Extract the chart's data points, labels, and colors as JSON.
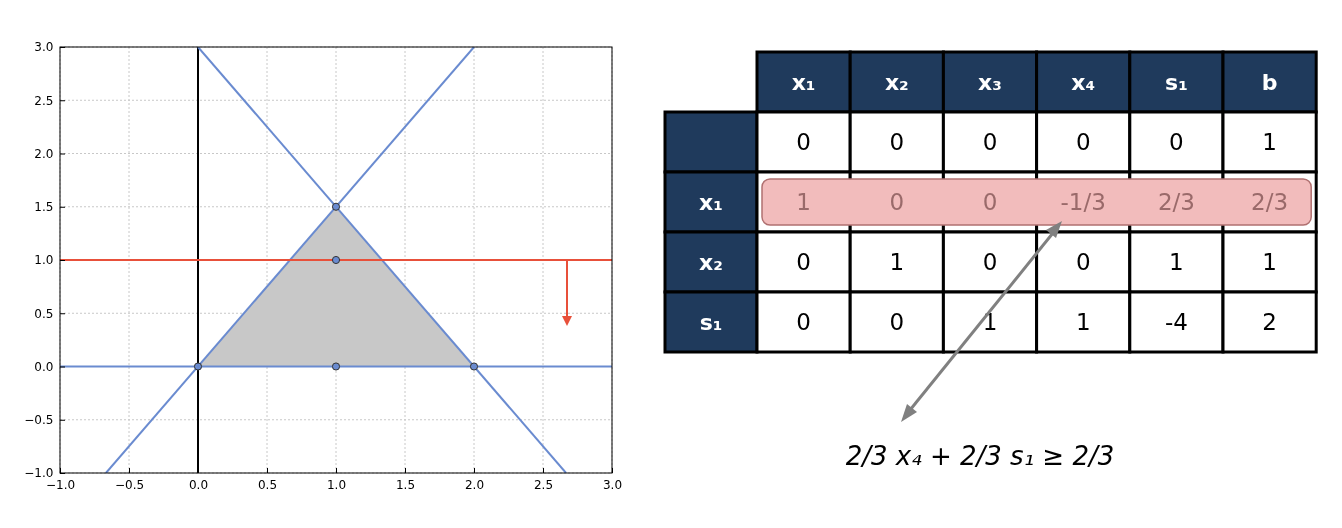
{
  "chart_data": [
    {
      "type": "line",
      "xlim": [
        -1,
        3
      ],
      "ylim": [
        -1,
        3
      ],
      "xticks": [
        {
          "value": -1,
          "label": "−1.0"
        },
        {
          "value": -0.5,
          "label": "−0.5"
        },
        {
          "value": 0,
          "label": "0.0"
        },
        {
          "value": 0.5,
          "label": "0.5"
        },
        {
          "value": 1,
          "label": "1.0"
        },
        {
          "value": 1.5,
          "label": "1.5"
        },
        {
          "value": 2,
          "label": "2.0"
        },
        {
          "value": 2.5,
          "label": "2.5"
        },
        {
          "value": 3,
          "label": "3.0"
        }
      ],
      "yticks": [
        {
          "value": -1,
          "label": "−1.0"
        },
        {
          "value": -0.5,
          "label": "−0.5"
        },
        {
          "value": 0,
          "label": "0.0"
        },
        {
          "value": 0.5,
          "label": "0.5"
        },
        {
          "value": 1,
          "label": "1.0"
        },
        {
          "value": 1.5,
          "label": "1.5"
        },
        {
          "value": 2,
          "label": "2.0"
        },
        {
          "value": 2.5,
          "label": "2.5"
        },
        {
          "value": 3,
          "label": "3.0"
        }
      ],
      "grid": true,
      "line_style": "solid",
      "series": [
        {
          "type": "area",
          "color": "#c8c8c8",
          "x": [
            0,
            1,
            2
          ],
          "values": [
            0,
            1.5,
            0
          ]
        },
        {
          "type": "line",
          "color": "#000000",
          "x": [
            0,
            0
          ],
          "values": [
            -1,
            3
          ]
        },
        {
          "type": "line",
          "color": "#6a8bd0",
          "x": [
            -1,
            3
          ],
          "values": [
            0,
            0
          ]
        },
        {
          "type": "line",
          "color": "#6a8bd0",
          "x": [
            -0.667,
            2
          ],
          "values": [
            -1,
            3
          ]
        },
        {
          "type": "line",
          "color": "#6a8bd0",
          "x": [
            0,
            2.667
          ],
          "values": [
            3,
            -1
          ]
        },
        {
          "type": "scatter",
          "color": "#6a8bd0",
          "marker": "circle",
          "x": [
            0,
            1,
            1,
            1,
            2
          ],
          "values": [
            0,
            1.5,
            1,
            0,
            0
          ]
        }
      ],
      "ref_lines": [
        {
          "axis": "y",
          "value": 1,
          "color": "#e8503a"
        }
      ]
    },
    {
      "type": "other",
      "categories": [
        "x₁",
        "x₂",
        "x₃",
        "x₄",
        "s₁",
        "b"
      ],
      "y_categories": [
        null,
        "x₁",
        "x₂",
        "s₁"
      ],
      "cell_labels": [
        [
          "0",
          "0",
          "0",
          "0",
          "0",
          "1"
        ],
        [
          "1",
          "0",
          "0",
          "-1/3",
          "2/3",
          "2/3"
        ],
        [
          "0",
          "1",
          "0",
          "0",
          "1",
          "1"
        ],
        [
          "0",
          "0",
          "1",
          "1",
          "-4",
          "2"
        ]
      ],
      "annotations": [
        "2/3 x₄ + 2/3 s₁ ≥ 2/3"
      ]
    }
  ]
}
